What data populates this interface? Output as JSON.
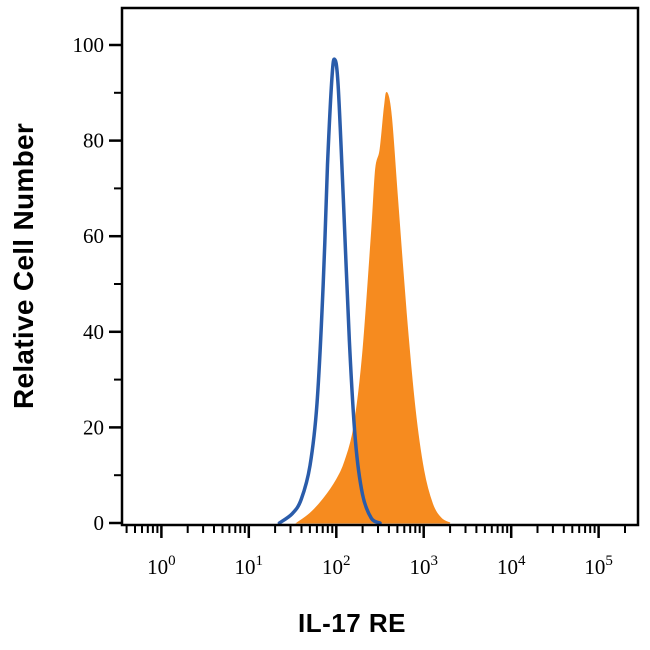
{
  "figure": {
    "background": "#ffffff",
    "axis_color": "#000000"
  },
  "chart_data": {
    "type": "area",
    "subtype": "flow-cytometry-histogram-overlay",
    "title": "",
    "xlabel": "IL-17 RE",
    "ylabel": "Relative Cell Number",
    "x_scale": "log10",
    "x_tick_label_base": "10",
    "x_decade_exponents": [
      0,
      1,
      2,
      3,
      4,
      5
    ],
    "xlim_log10": [
      -0.45,
      5.45
    ],
    "ylim": [
      0,
      100
    ],
    "y_major_ticks": [
      0,
      20,
      40,
      60,
      80,
      100
    ],
    "y_minor_ticks": [
      10,
      30,
      50,
      70,
      90
    ],
    "grid": false,
    "legend": "none",
    "series": [
      {
        "name": "orange-filled-histogram",
        "style": "filled",
        "color": "#F68B1F",
        "points_log10x_y": [
          [
            1.55,
            0
          ],
          [
            1.7,
            2
          ],
          [
            1.85,
            5
          ],
          [
            2.0,
            9
          ],
          [
            2.1,
            13
          ],
          [
            2.2,
            20
          ],
          [
            2.3,
            35
          ],
          [
            2.4,
            60
          ],
          [
            2.45,
            74
          ],
          [
            2.5,
            78
          ],
          [
            2.55,
            87
          ],
          [
            2.58,
            90
          ],
          [
            2.63,
            85
          ],
          [
            2.7,
            68
          ],
          [
            2.8,
            44
          ],
          [
            2.9,
            24
          ],
          [
            3.0,
            11
          ],
          [
            3.1,
            4
          ],
          [
            3.2,
            1
          ],
          [
            3.3,
            0
          ]
        ]
      },
      {
        "name": "blue-open-histogram",
        "style": "open",
        "color": "#2A5CAA",
        "stroke_width": 3.5,
        "points_log10x_y": [
          [
            1.35,
            0
          ],
          [
            1.5,
            2
          ],
          [
            1.6,
            5
          ],
          [
            1.7,
            12
          ],
          [
            1.78,
            25
          ],
          [
            1.85,
            50
          ],
          [
            1.9,
            75
          ],
          [
            1.95,
            93
          ],
          [
            1.98,
            97
          ],
          [
            2.02,
            92
          ],
          [
            2.08,
            68
          ],
          [
            2.15,
            38
          ],
          [
            2.22,
            17
          ],
          [
            2.3,
            6
          ],
          [
            2.4,
            1
          ],
          [
            2.5,
            0
          ]
        ]
      }
    ]
  }
}
